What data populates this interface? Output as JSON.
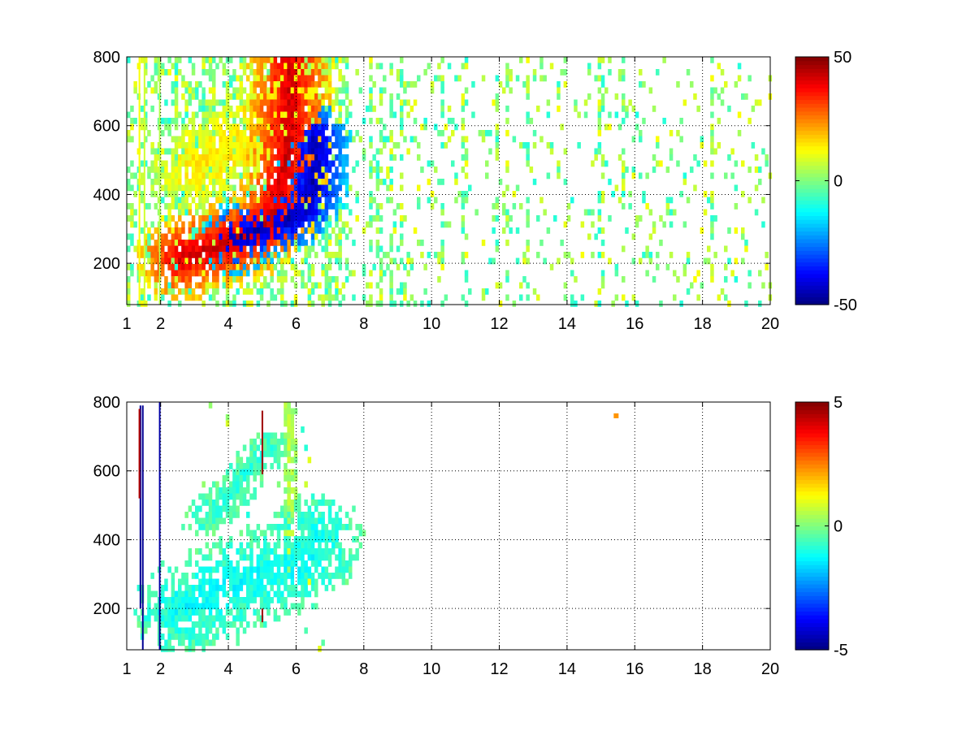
{
  "figure": {
    "background": "#ffffff",
    "colormap": "jet"
  },
  "chart_data": [
    {
      "type": "heatmap",
      "title": "",
      "xlabel": "",
      "ylabel": "",
      "xlim": [
        1,
        20
      ],
      "ylim": [
        80,
        800
      ],
      "xticks": [
        1,
        2,
        4,
        6,
        8,
        10,
        12,
        14,
        16,
        18,
        20
      ],
      "yticks": [
        200,
        400,
        600,
        800
      ],
      "grid": true,
      "colorbar": {
        "range": [
          -50,
          50
        ],
        "ticks": [
          50,
          0,
          -50
        ],
        "colormap": "jet"
      },
      "features": [
        {
          "name": "positive ridge",
          "points": [
            [
              2.6,
              215
            ],
            [
              3.2,
              235
            ],
            [
              4.0,
              260
            ],
            [
              4.8,
              290
            ],
            [
              5.3,
              330
            ],
            [
              5.6,
              420
            ],
            [
              5.75,
              560
            ],
            [
              5.85,
              780
            ]
          ],
          "value": 42,
          "spread": 55
        },
        {
          "name": "negative ridge",
          "points": [
            [
              4.2,
              270
            ],
            [
              5.0,
              300
            ],
            [
              5.8,
              330
            ],
            [
              6.2,
              360
            ],
            [
              6.5,
              430
            ],
            [
              6.6,
              560
            ]
          ],
          "value": -45,
          "spread": 45
        },
        {
          "name": "upper positive band",
          "points": [
            [
              3.0,
              480
            ],
            [
              3.8,
              520
            ],
            [
              4.6,
              580
            ],
            [
              5.3,
              630
            ],
            [
              5.8,
              700
            ]
          ],
          "value": 15,
          "spread": 60
        }
      ]
    },
    {
      "type": "heatmap",
      "title": "",
      "xlabel": "",
      "ylabel": "",
      "xlim": [
        1,
        20
      ],
      "ylim": [
        80,
        800
      ],
      "xticks": [
        1,
        2,
        4,
        6,
        8,
        10,
        12,
        14,
        16,
        18,
        20
      ],
      "yticks": [
        200,
        400,
        600,
        800
      ],
      "grid": true,
      "colorbar": {
        "range": [
          -5,
          5
        ],
        "ticks": [
          5,
          0,
          -5
        ],
        "colormap": "jet"
      },
      "features": [
        {
          "name": "main band",
          "points": [
            [
              2.6,
              200
            ],
            [
              3.5,
              240
            ],
            [
              4.5,
              280
            ],
            [
              5.5,
              310
            ],
            [
              6.2,
              340
            ],
            [
              6.6,
              400
            ]
          ],
          "value": -1.2,
          "spread": 60
        },
        {
          "name": "vertical streak",
          "points": [
            [
              5.8,
              330
            ],
            [
              5.8,
              790
            ]
          ],
          "value": 0.5,
          "spread": 8
        },
        {
          "name": "upper band",
          "points": [
            [
              3.2,
              460
            ],
            [
              4.0,
              520
            ],
            [
              4.6,
              600
            ],
            [
              5.2,
              660
            ]
          ],
          "value": -0.8,
          "spread": 25
        }
      ]
    }
  ]
}
